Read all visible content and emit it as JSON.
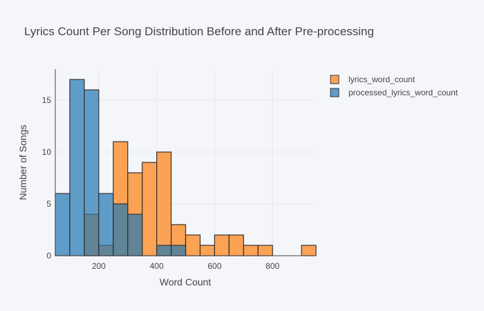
{
  "chart_data": {
    "type": "histogram",
    "title": "Lyrics Count Per Song Distribution Before and After Pre-processing",
    "xlabel": "Word Count",
    "ylabel": "Number of Songs",
    "xlim": [
      50,
      950
    ],
    "ylim": [
      0,
      18
    ],
    "bin_width": 50,
    "x_ticks": [
      200,
      400,
      600,
      800
    ],
    "y_ticks": [
      0,
      5,
      10,
      15
    ],
    "grid": true,
    "barmode": "overlay",
    "legend_position": "top-right",
    "series": [
      {
        "name": "lyrics_word_count",
        "color": "#ff7f0e",
        "bin_starts": [
          150,
          200,
          250,
          300,
          350,
          400,
          450,
          500,
          550,
          600,
          650,
          700,
          750,
          900
        ],
        "counts": [
          4,
          1,
          11,
          8,
          9,
          10,
          3,
          2,
          1,
          2,
          2,
          1,
          1,
          1
        ]
      },
      {
        "name": "processed_lyrics_word_count",
        "color": "#1f77b4",
        "bin_starts": [
          50,
          100,
          150,
          200,
          250,
          300,
          400,
          450
        ],
        "counts": [
          6,
          17,
          16,
          6,
          5,
          4,
          1,
          1
        ]
      }
    ]
  }
}
